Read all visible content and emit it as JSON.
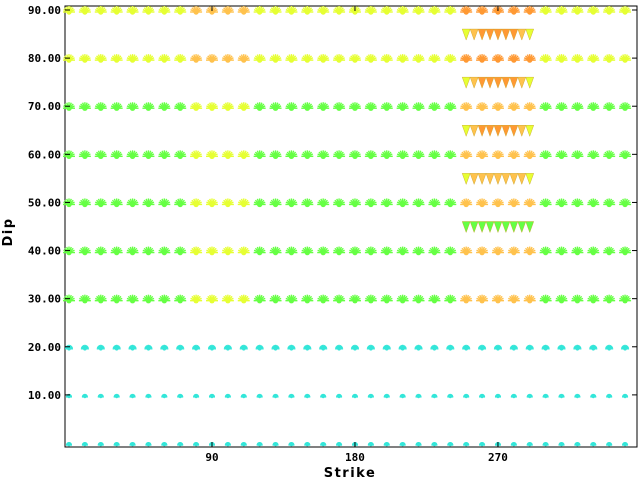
{
  "chart_data": {
    "type": "scatter",
    "xlabel": "Strike",
    "ylabel": "Dip",
    "xlim": [
      0,
      355
    ],
    "ylim": [
      0,
      90
    ],
    "x_ticks": [
      {
        "value": 90,
        "label": "90"
      },
      {
        "value": 180,
        "label": "180"
      },
      {
        "value": 270,
        "label": "270"
      }
    ],
    "y_ticks": [
      {
        "value": 10,
        "label": "10.00"
      },
      {
        "value": 20,
        "label": "20.00"
      },
      {
        "value": 30,
        "label": "30.00"
      },
      {
        "value": 40,
        "label": "40.00"
      },
      {
        "value": 50,
        "label": "50.00"
      },
      {
        "value": 60,
        "label": "60.00"
      },
      {
        "value": 70,
        "label": "70.00"
      },
      {
        "value": 80,
        "label": "80.00"
      },
      {
        "value": 90,
        "label": "90.00"
      }
    ],
    "grid": false,
    "marker_grid": {
      "strike_start": 0,
      "strike_step": 10,
      "strike_end": 350,
      "dip_rows": [
        0,
        10,
        20,
        30,
        40,
        50,
        60,
        70,
        80,
        90
      ]
    },
    "highlight": {
      "strike_range": [
        250,
        290
      ],
      "dip_rows": [
        45,
        55,
        65,
        75,
        85
      ]
    },
    "colors": {
      "low": "#33e6d9",
      "mid": "#66ff44",
      "high_mid": "#e6ff33",
      "high": "#ffc24d",
      "max": "#ff9933"
    }
  }
}
